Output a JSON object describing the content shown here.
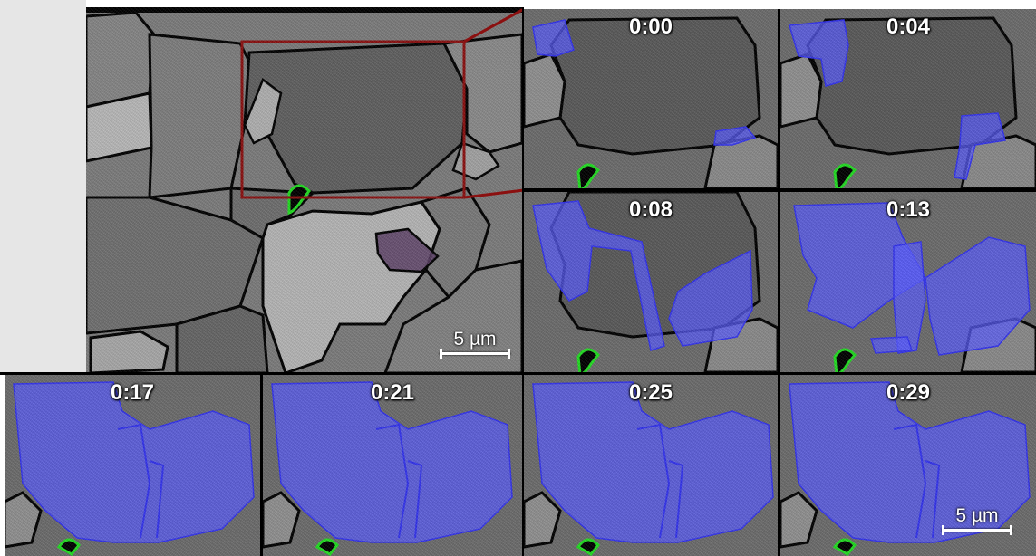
{
  "overview": {
    "scale_label": "5 µm"
  },
  "frames": [
    {
      "time": "0:00"
    },
    {
      "time": "0:04"
    },
    {
      "time": "0:08"
    },
    {
      "time": "0:13"
    },
    {
      "time": "0:17"
    },
    {
      "time": "0:21"
    },
    {
      "time": "0:25"
    },
    {
      "time": "0:29"
    }
  ],
  "final_scale_label": "5 µm",
  "colors": {
    "transformed_region": "#5a5cff",
    "zoom_box": "#8b1010",
    "marker": "#22dd22",
    "grain_boundary": "#000000",
    "purple_grain": "#5c3f66"
  }
}
